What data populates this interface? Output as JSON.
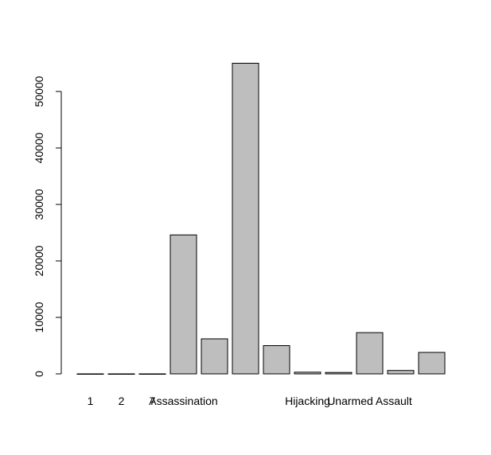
{
  "chart_data": {
    "type": "bar",
    "title": "",
    "xlabel": "",
    "ylabel": "",
    "ylim": [
      0,
      55000
    ],
    "yticks": [
      "0",
      "10000",
      "20000",
      "30000",
      "40000",
      "50000"
    ],
    "categories": [
      "1",
      "2",
      "7",
      "Assassination",
      "",
      "",
      "",
      "Hijacking",
      "",
      "Unarmed Assault",
      "",
      ""
    ],
    "values": [
      3,
      2,
      1,
      24600,
      6200,
      55000,
      5000,
      300,
      250,
      7300,
      600,
      3800
    ],
    "bar_fill": "#bebebe",
    "bar_stroke": "#000000"
  }
}
